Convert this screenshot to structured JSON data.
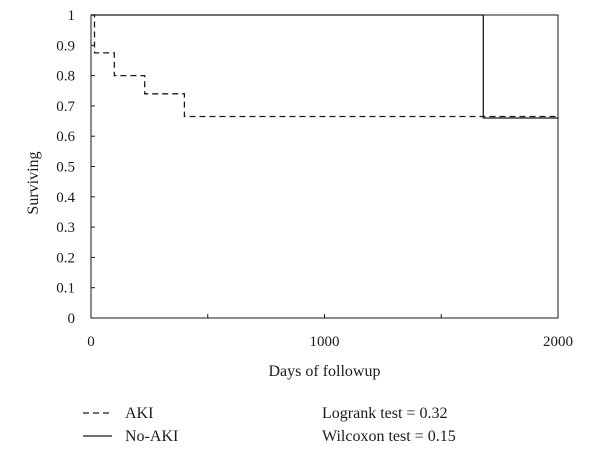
{
  "chart_data": {
    "type": "line",
    "subtype": "step",
    "xlabel": "Days of followup",
    "ylabel": "Surviving",
    "xlim": [
      0,
      2000
    ],
    "ylim": [
      0,
      1
    ],
    "x_ticks": [
      0,
      1000,
      2000
    ],
    "x_minor_ticks": [
      500,
      1500
    ],
    "y_ticks": [
      0,
      0.1,
      0.2,
      0.3,
      0.4,
      0.5,
      0.6,
      0.7,
      0.8,
      0.9,
      1
    ],
    "y_tick_labels": [
      "0",
      "0.1",
      "0.2",
      "0.3",
      "0.4",
      "0.5",
      "0.6",
      "0.7",
      "0.8",
      "0.9",
      "1"
    ],
    "x_tick_labels": [
      "0",
      "1000",
      "2000"
    ],
    "grid": false,
    "legend_placement": "bottom-left",
    "series": [
      {
        "name": "AKI",
        "line_style": "dashed",
        "color": "#1a1a1a",
        "points": [
          [
            0,
            1
          ],
          [
            15,
            0.875
          ],
          [
            100,
            0.8
          ],
          [
            230,
            0.74
          ],
          [
            400,
            0.665
          ],
          [
            2000,
            0.665
          ]
        ]
      },
      {
        "name": "No-AKI",
        "line_style": "solid",
        "color": "#1a1a1a",
        "points": [
          [
            0,
            1
          ],
          [
            1680,
            0.66
          ],
          [
            2000,
            0.66
          ]
        ]
      }
    ],
    "annotations": [
      "Logrank test = 0.32",
      "Wilcoxon test = 0.15"
    ]
  }
}
